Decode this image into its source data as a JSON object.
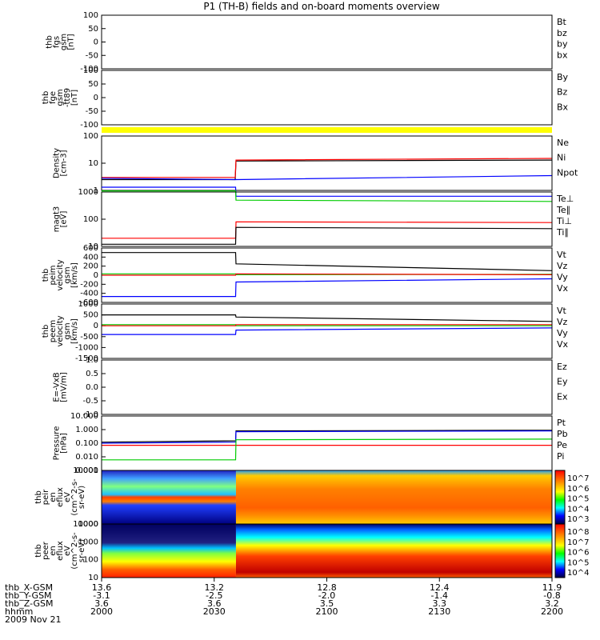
{
  "title": "P1 (TH-B) fields and on-board moments overview",
  "colors": {
    "red": "#ff0000",
    "green": "#00cc00",
    "blue": "#0000ff",
    "yellow": "#ffff00",
    "black": "#000000"
  },
  "chart_data": [
    {
      "type": "line",
      "id": "p1",
      "ylabel": [
        "thb",
        "fgs",
        "gsm",
        "[nT]"
      ],
      "ylim": [
        -100,
        100
      ],
      "yticks": [
        "100",
        "50",
        "0",
        "-50",
        "-100"
      ],
      "legend": [
        {
          "text": "Bt",
          "color": "black"
        },
        {
          "text": "bz",
          "color": "red"
        },
        {
          "text": "by",
          "color": "green"
        },
        {
          "text": "bx",
          "color": "blue"
        }
      ],
      "series": []
    },
    {
      "type": "line",
      "id": "p2",
      "ylabel": [
        "thb",
        "fge",
        "gsm",
        "-tt89",
        "[nT]"
      ],
      "ylim": [
        -100,
        100
      ],
      "yticks": [
        "100",
        "50",
        "0",
        "-50",
        "-100"
      ],
      "legend": [
        {
          "text": "By",
          "color": "green"
        },
        {
          "text": "Bz",
          "color": "red"
        },
        {
          "text": "Bx",
          "color": "red"
        }
      ],
      "series": []
    },
    {
      "type": "line",
      "id": "p3",
      "ylabel": [
        "Density",
        "[cm-3]"
      ],
      "yscale": "log",
      "yticks": [
        "100",
        "10",
        "1"
      ],
      "legend": [
        {
          "text": "Ne",
          "color": "red"
        },
        {
          "text": "Ni",
          "color": "black"
        },
        {
          "text": "Npot",
          "color": "blue"
        }
      ],
      "series": [
        {
          "color": "black",
          "x": [
            0,
            1780,
            1790,
            6000
          ],
          "y": [
            2.5,
            2.5,
            12,
            13
          ]
        },
        {
          "color": "red",
          "x": [
            0,
            1780,
            1790,
            6000
          ],
          "y": [
            3,
            3,
            13,
            15
          ]
        },
        {
          "color": "blue",
          "x": [
            0,
            1790,
            6000
          ],
          "y": [
            2.8,
            2.5,
            3.5
          ]
        }
      ]
    },
    {
      "type": "line",
      "id": "p4",
      "ylabel": [
        "magt3",
        "[eV]"
      ],
      "yscale": "log",
      "yticks": [
        "1000",
        "100",
        "10"
      ],
      "legend": [
        {
          "text": "Te⊥",
          "color": "red"
        },
        {
          "text": "Te∥",
          "color": "black"
        },
        {
          "text": "Ti⊥",
          "color": "black"
        },
        {
          "text": "Ti∥",
          "color": "green"
        }
      ],
      "series": [
        {
          "color": "blue",
          "x": [
            0,
            1785,
            1790,
            6000
          ],
          "y": [
            1500,
            1500,
            700,
            700
          ]
        },
        {
          "color": "green",
          "x": [
            0,
            1785,
            1790,
            6000
          ],
          "y": [
            1100,
            1100,
            500,
            450
          ]
        },
        {
          "color": "red",
          "x": [
            0,
            1785,
            1790,
            6000
          ],
          "y": [
            20,
            20,
            80,
            75
          ]
        },
        {
          "color": "black",
          "x": [
            0,
            1785,
            1790,
            6000
          ],
          "y": [
            12,
            12,
            50,
            45
          ]
        }
      ]
    },
    {
      "type": "line",
      "id": "p5",
      "ylabel": [
        "thb",
        "peim",
        "velocity",
        "gsm",
        "[km/s]"
      ],
      "ylim": [
        -600,
        600
      ],
      "yticks": [
        "600",
        "400",
        "200",
        "0",
        "-200",
        "-400",
        "-600"
      ],
      "legend": [
        {
          "text": "Vt",
          "color": "black"
        },
        {
          "text": "Vz",
          "color": "red"
        },
        {
          "text": "Vy",
          "color": "green"
        },
        {
          "text": "Vx",
          "color": "blue"
        }
      ],
      "series": [
        {
          "color": "black",
          "x": [
            0,
            1785,
            1790,
            6000
          ],
          "y": [
            500,
            500,
            250,
            100
          ]
        },
        {
          "color": "green",
          "x": [
            0,
            1785,
            1790,
            6000
          ],
          "y": [
            30,
            30,
            10,
            20
          ]
        },
        {
          "color": "red",
          "x": [
            0,
            1785,
            1790,
            6000
          ],
          "y": [
            0,
            0,
            30,
            10
          ]
        },
        {
          "color": "blue",
          "x": [
            0,
            1785,
            1790,
            6000
          ],
          "y": [
            -470,
            -470,
            -150,
            -80
          ]
        }
      ]
    },
    {
      "type": "line",
      "id": "p6",
      "ylabel": [
        "thb",
        "peem",
        "velocity",
        "gsm",
        "[km/s]"
      ],
      "ylim": [
        -1500,
        1000
      ],
      "yticks": [
        "1000",
        "500",
        "0",
        "-500",
        "-1000",
        "-1500"
      ],
      "legend": [
        {
          "text": "Vt",
          "color": "black"
        },
        {
          "text": "Vz",
          "color": "red"
        },
        {
          "text": "Vy",
          "color": "green"
        },
        {
          "text": "Vx",
          "color": "blue"
        }
      ],
      "series": [
        {
          "color": "black",
          "x": [
            0,
            1785,
            1790,
            6000
          ],
          "y": [
            500,
            500,
            400,
            200
          ]
        },
        {
          "color": "green",
          "x": [
            0,
            1785,
            1790,
            6000
          ],
          "y": [
            50,
            50,
            0,
            0
          ]
        },
        {
          "color": "red",
          "x": [
            0,
            1785,
            1790,
            6000
          ],
          "y": [
            0,
            0,
            50,
            50
          ]
        },
        {
          "color": "blue",
          "x": [
            0,
            1785,
            1790,
            6000
          ],
          "y": [
            -400,
            -400,
            -200,
            -100
          ]
        }
      ]
    },
    {
      "type": "line",
      "id": "p7",
      "ylabel": [
        "E=-VxB",
        "[mV/m]"
      ],
      "ylim": [
        -1,
        1
      ],
      "yticks": [
        "1.0",
        "0.5",
        "0.0",
        "-0.5",
        "-1.0"
      ],
      "legend": [
        {
          "text": "Ez",
          "color": "red"
        },
        {
          "text": "Ey",
          "color": "green"
        },
        {
          "text": "Ex",
          "color": "blue"
        }
      ],
      "series": []
    },
    {
      "type": "line",
      "id": "p8",
      "ylabel": [
        "Pressure",
        "[nPa]"
      ],
      "yscale": "log",
      "yticks": [
        "10.000",
        "1.000",
        "0.100",
        "0.010",
        "0.001"
      ],
      "legend": [
        {
          "text": "Pt",
          "color": "black"
        },
        {
          "text": "Pb",
          "color": "red"
        },
        {
          "text": "Pe",
          "color": "green"
        },
        {
          "text": "Pi",
          "color": "blue"
        }
      ],
      "series": [
        {
          "color": "black",
          "x": [
            0,
            1785,
            1790,
            6000
          ],
          "y": [
            0.12,
            0.15,
            0.8,
            0.9
          ]
        },
        {
          "color": "blue",
          "x": [
            0,
            1785,
            1790,
            6000
          ],
          "y": [
            0.1,
            0.12,
            0.7,
            0.8
          ]
        },
        {
          "color": "red",
          "x": [
            0,
            1785,
            1790,
            6000
          ],
          "y": [
            0.07,
            0.07,
            0.07,
            0.07
          ]
        },
        {
          "color": "green",
          "x": [
            0,
            1785,
            1790,
            6000
          ],
          "y": [
            0.006,
            0.006,
            0.18,
            0.2
          ]
        }
      ]
    },
    {
      "type": "heatmap",
      "id": "p9",
      "ylabel": [
        "thb",
        "peir",
        "en",
        "eflux",
        "eV",
        "(cm^2-s-",
        "sr-eV)"
      ],
      "yticks": [
        "10000",
        "1000"
      ],
      "colorbar": [
        "10^7",
        "10^6",
        "10^5",
        "10^4",
        "10^3"
      ]
    },
    {
      "type": "heatmap",
      "id": "p10",
      "ylabel": [
        "thb",
        "peer",
        "en",
        "eflux",
        "eV",
        "(cm^2-s-",
        "sr-eV)"
      ],
      "yticks": [
        "10000",
        "1000",
        "100",
        "10"
      ],
      "colorbar": [
        "10^8",
        "10^7",
        "10^6",
        "10^5",
        "10^4"
      ]
    }
  ],
  "xaxis": {
    "rows": [
      {
        "label": "thb_X-GSM",
        "values": [
          "13.6",
          "13.2",
          "12.8",
          "12.4",
          "11.9"
        ]
      },
      {
        "label": "thb_Y-GSM",
        "values": [
          "-3.1",
          "-2.5",
          "-2.0",
          "-1.4",
          "-0.8"
        ]
      },
      {
        "label": "thb_Z-GSM",
        "values": [
          "3.6",
          "3.6",
          "3.5",
          "3.3",
          "3.2"
        ]
      },
      {
        "label": "hhmm",
        "values": [
          "2000",
          "2030",
          "2100",
          "2130",
          "2200"
        ]
      }
    ],
    "date": "2009 Nov 21"
  }
}
